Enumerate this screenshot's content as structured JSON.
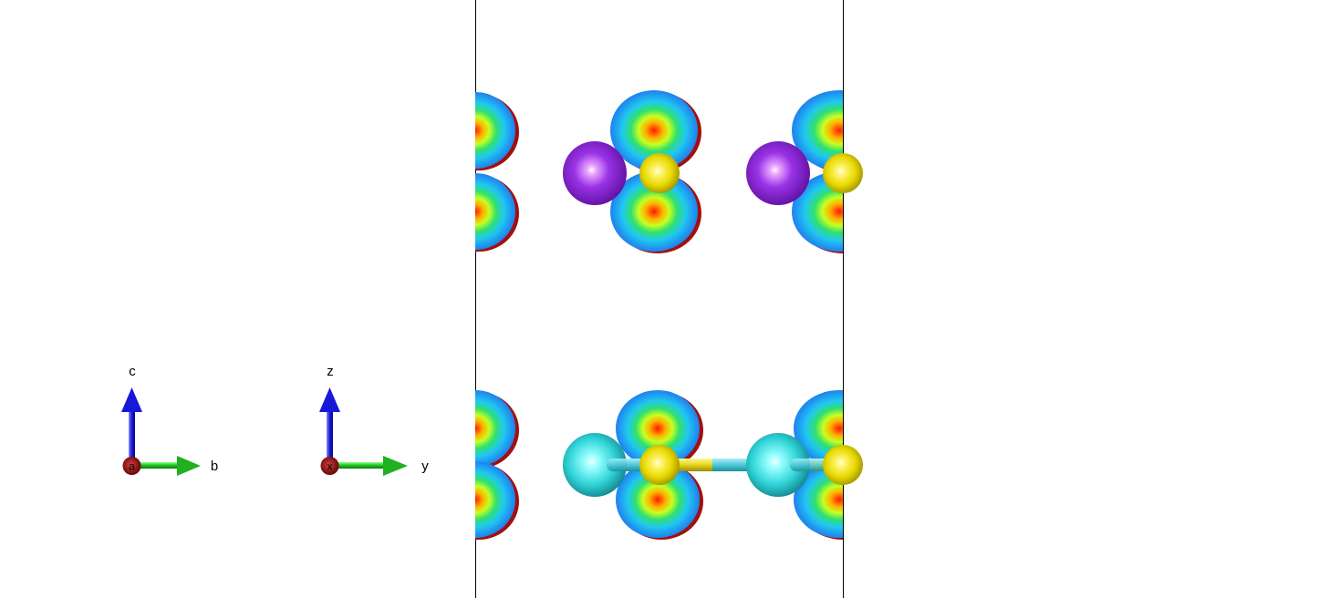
{
  "axes_crystal": {
    "c_label": "c",
    "b_label": "b",
    "a_label": "a"
  },
  "axes_cartesian": {
    "z_label": "z",
    "y_label": "y",
    "x_label": "x"
  },
  "colors": {
    "background": "#ffffff",
    "cell_edge": "#000000",
    "axis_up": "#1010d0",
    "axis_right": "#18b018",
    "axis_origin": "#8b0000",
    "atom_purple": "#8a2be2",
    "atom_yellow": "#f0e020",
    "atom_cyan": "#40d8d8",
    "bond_cyan": "#50c8d8",
    "bond_yellow": "#e0d020",
    "isosurface_outer": "#2090f0",
    "isosurface_inner": "#ff2000",
    "isosurface_edge": "#a01010"
  }
}
